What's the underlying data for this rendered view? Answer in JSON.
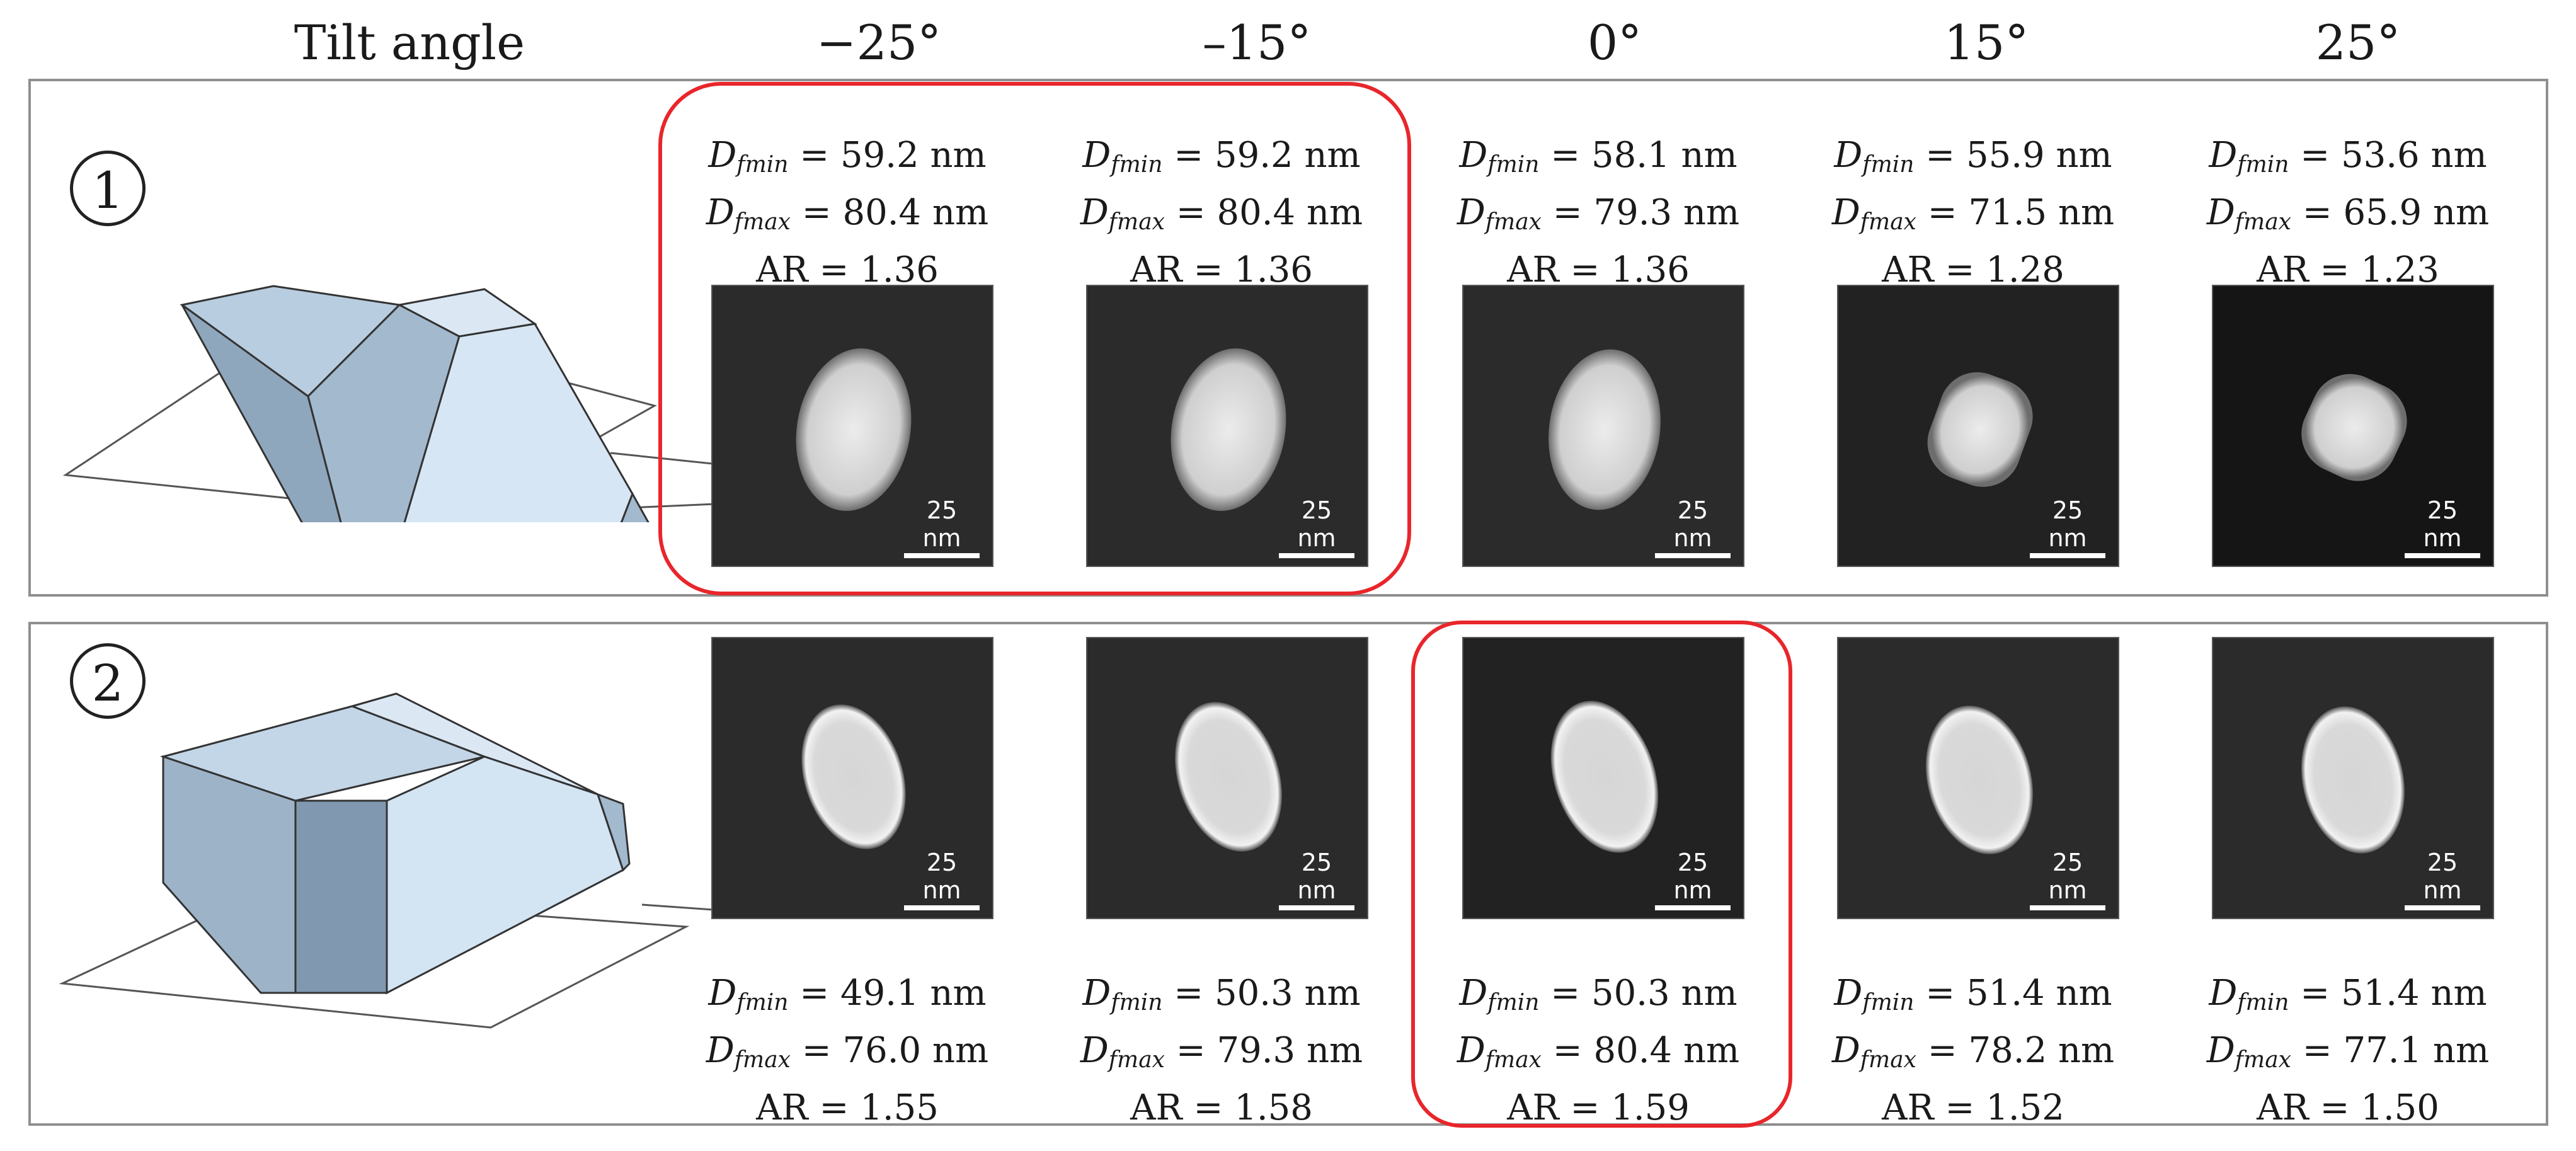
{
  "header": {
    "label": "Tilt angle",
    "angles": [
      "−25°",
      "–15°",
      "0°",
      "15°",
      "25°"
    ]
  },
  "rows": [
    {
      "label": "1",
      "tiles": [
        {
          "dmin_sym": "D",
          "dmin_sub": "fmin",
          "dmin_val": " = 59.2 nm",
          "dmax_sym": "D",
          "dmax_sub": "fmax",
          "dmax_val": " = 80.4 nm",
          "ar": "AR = 1.36",
          "scale": "25 nm"
        },
        {
          "dmin_sym": "D",
          "dmin_sub": "fmin",
          "dmin_val": " = 59.2 nm",
          "dmax_sym": "D",
          "dmax_sub": "fmax",
          "dmax_val": " = 80.4 nm",
          "ar": "AR = 1.36",
          "scale": "25 nm"
        },
        {
          "dmin_sym": "D",
          "dmin_sub": "fmin",
          "dmin_val": " = 58.1 nm",
          "dmax_sym": "D",
          "dmax_sub": "fmax",
          "dmax_val": " = 79.3 nm",
          "ar": "AR = 1.36",
          "scale": "25 nm"
        },
        {
          "dmin_sym": "D",
          "dmin_sub": "fmin",
          "dmin_val": " = 55.9 nm",
          "dmax_sym": "D",
          "dmax_sub": "fmax",
          "dmax_val": " = 71.5 nm",
          "ar": "AR = 1.28",
          "scale": "25 nm"
        },
        {
          "dmin_sym": "D",
          "dmin_sub": "fmin",
          "dmin_val": " = 53.6 nm",
          "dmax_sym": "D",
          "dmax_sub": "fmax",
          "dmax_val": " = 65.9 nm",
          "ar": "AR = 1.23",
          "scale": "25 nm"
        }
      ]
    },
    {
      "label": "2",
      "tiles": [
        {
          "dmin_sym": "D",
          "dmin_sub": "fmin",
          "dmin_val": " = 49.1 nm",
          "dmax_sym": "D",
          "dmax_sub": "fmax",
          "dmax_val": " = 76.0 nm",
          "ar": "AR = 1.55",
          "scale": "25 nm"
        },
        {
          "dmin_sym": "D",
          "dmin_sub": "fmin",
          "dmin_val": " = 50.3 nm",
          "dmax_sym": "D",
          "dmax_sub": "fmax",
          "dmax_val": " = 79.3 nm",
          "ar": "AR = 1.58",
          "scale": "25 nm"
        },
        {
          "dmin_sym": "D",
          "dmin_sub": "fmin",
          "dmin_val": " = 50.3 nm",
          "dmax_sym": "D",
          "dmax_sub": "fmax",
          "dmax_val": " = 80.4 nm",
          "ar": "AR = 1.59",
          "scale": "25 nm"
        },
        {
          "dmin_sym": "D",
          "dmin_sub": "fmin",
          "dmin_val": " = 51.4 nm",
          "dmax_sym": "D",
          "dmax_sub": "fmax",
          "dmax_val": " = 78.2 nm",
          "ar": "AR = 1.52",
          "scale": "25 nm"
        },
        {
          "dmin_sym": "D",
          "dmin_sub": "fmin",
          "dmin_val": " = 51.4 nm",
          "dmax_sym": "D",
          "dmax_sub": "fmax",
          "dmax_val": " = 77.1 nm",
          "ar": "AR = 1.50",
          "scale": "25 nm"
        }
      ]
    }
  ],
  "colors": {
    "highlight": "#e8262b",
    "panel_border": "#8f8f8f",
    "tile_background": "#2b2b2b",
    "crystal_face": "#c9dcec"
  }
}
